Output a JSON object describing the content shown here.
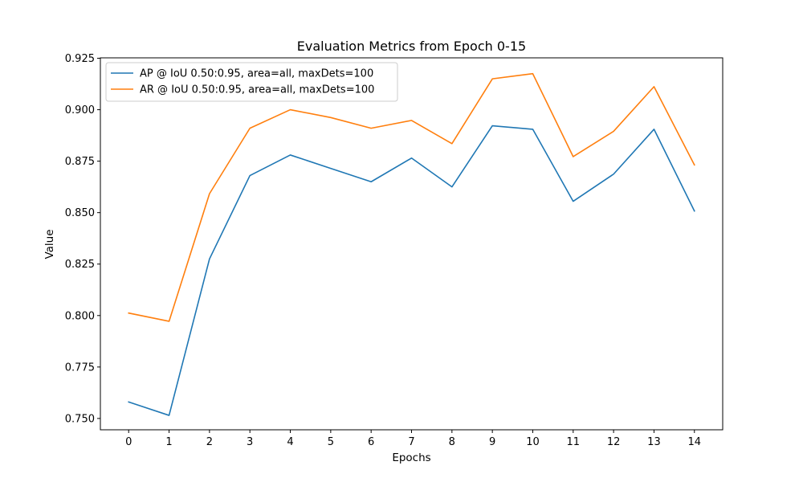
{
  "chart_data": {
    "type": "line",
    "title": "Evaluation Metrics from Epoch 0-15",
    "xlabel": "Epochs",
    "ylabel": "Value",
    "x": [
      0,
      1,
      2,
      3,
      4,
      5,
      6,
      7,
      8,
      9,
      10,
      11,
      12,
      13,
      14
    ],
    "xticks": [
      0,
      1,
      2,
      3,
      4,
      5,
      6,
      7,
      8,
      9,
      10,
      11,
      12,
      13,
      14
    ],
    "yticks": [
      0.75,
      0.775,
      0.8,
      0.825,
      0.85,
      0.875,
      0.9,
      0.925
    ],
    "ytick_labels": [
      "0.750",
      "0.775",
      "0.800",
      "0.825",
      "0.850",
      "0.875",
      "0.900",
      "0.925"
    ],
    "xlim": [
      -0.7,
      14.7
    ],
    "ylim": [
      0.7445,
      0.9252
    ],
    "grid": false,
    "legend_position": "upper-left",
    "series": [
      {
        "name": "AP @ IoU 0.50:0.95, area=all, maxDets=100",
        "color": "#1f77b4",
        "values": [
          0.758,
          0.7515,
          0.8275,
          0.868,
          0.878,
          0.8715,
          0.865,
          0.8765,
          0.8625,
          0.8922,
          0.8905,
          0.8555,
          0.8687,
          0.8905,
          0.8508
        ]
      },
      {
        "name": "AR @ IoU 0.50:0.95, area=all, maxDets=100",
        "color": "#ff7f0e",
        "values": [
          0.8012,
          0.7972,
          0.8592,
          0.891,
          0.9,
          0.8962,
          0.891,
          0.8948,
          0.8835,
          0.915,
          0.9175,
          0.8772,
          0.8895,
          0.9112,
          0.8732
        ]
      }
    ]
  }
}
